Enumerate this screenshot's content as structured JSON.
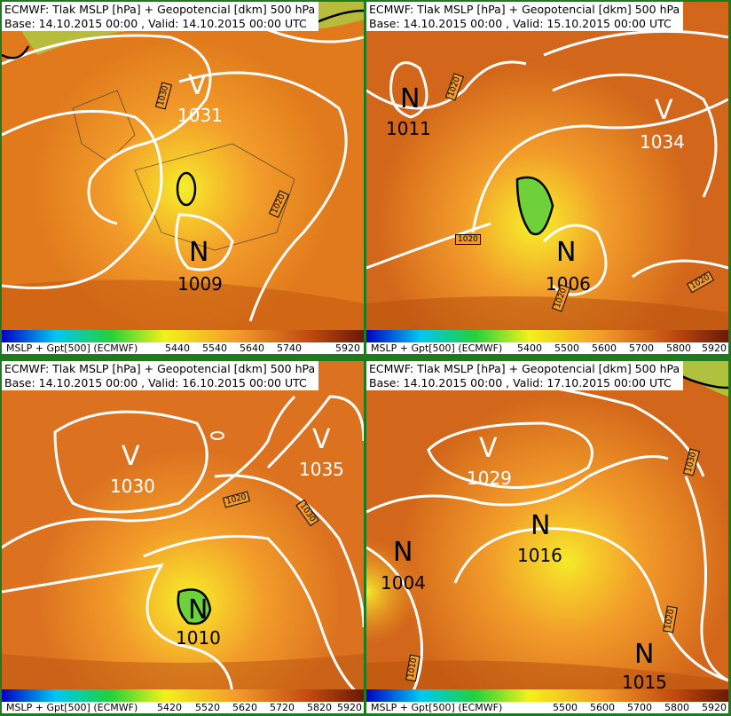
{
  "colors": {
    "accent_border": "#1f7a1f",
    "label_bg": "#ffffff",
    "high_land": "#f29b2a",
    "low_yellow": "#f7e31a",
    "green_low": "#6fd13a",
    "contour": "#ffffff"
  },
  "panels": [
    {
      "title": "ECMWF: Tlak MSLP [hPa] + Geopotencial [dkm] 500 hPa",
      "base": "Base: 14.10.2015 00:00 , Valid: 14.10.2015 00:00 UTC",
      "colorbar_label": "MSLP + Gpt[500] (ECMWF)",
      "ticks": [
        "5440",
        "5540",
        "5640",
        "5740",
        "5920"
      ],
      "centers": [
        {
          "sym": "V",
          "value": "1031",
          "color": "white"
        },
        {
          "sym": "N",
          "value": "1009",
          "color": "black"
        }
      ],
      "isobar_labels": [
        "1030",
        "1020"
      ]
    },
    {
      "title": "ECMWF: Tlak MSLP [hPa] + Geopotencial [dkm] 500 hPa",
      "base": "Base: 14.10.2015 00:00 , Valid: 15.10.2015 00:00 UTC",
      "colorbar_label": "MSLP + Gpt[500] (ECMWF)",
      "ticks": [
        "5400",
        "5500",
        "5600",
        "5700",
        "5800",
        "5920"
      ],
      "centers": [
        {
          "sym": "N",
          "value": "1011",
          "color": "black"
        },
        {
          "sym": "V",
          "value": "1034",
          "color": "white"
        },
        {
          "sym": "N",
          "value": "1006",
          "color": "black"
        }
      ],
      "isobar_labels": [
        "1020",
        "1020",
        "1020",
        "1020"
      ]
    },
    {
      "title": "ECMWF: Tlak MSLP [hPa] + Geopotencial [dkm] 500 hPa",
      "base": "Base: 14.10.2015 00:00 , Valid: 16.10.2015 00:00 UTC",
      "colorbar_label": "MSLP + Gpt[500] (ECMWF)",
      "ticks": [
        "5420",
        "5520",
        "5620",
        "5720",
        "5820",
        "5920"
      ],
      "centers": [
        {
          "sym": "V",
          "value": "1030",
          "color": "white"
        },
        {
          "sym": "V",
          "value": "1035",
          "color": "white"
        },
        {
          "sym": "N",
          "value": "1010",
          "color": "black"
        }
      ],
      "isobar_labels": [
        "1020",
        "1030"
      ]
    },
    {
      "title": "ECMWF: Tlak MSLP [hPa] + Geopotencial [dkm] 500 hPa",
      "base": "Base: 14.10.2015 00:00 , Valid: 17.10.2015 00:00 UTC",
      "colorbar_label": "MSLP + Gpt[500] (ECMWF)",
      "ticks": [
        "5500",
        "5600",
        "5700",
        "5800",
        "5920"
      ],
      "centers": [
        {
          "sym": "V",
          "value": "1029",
          "color": "white"
        },
        {
          "sym": "N",
          "value": "1016",
          "color": "black"
        },
        {
          "sym": "N",
          "value": "1004",
          "color": "black"
        },
        {
          "sym": "N",
          "value": "1015",
          "color": "black"
        }
      ],
      "isobar_labels": [
        "1030",
        "1020",
        "1010"
      ]
    }
  ]
}
